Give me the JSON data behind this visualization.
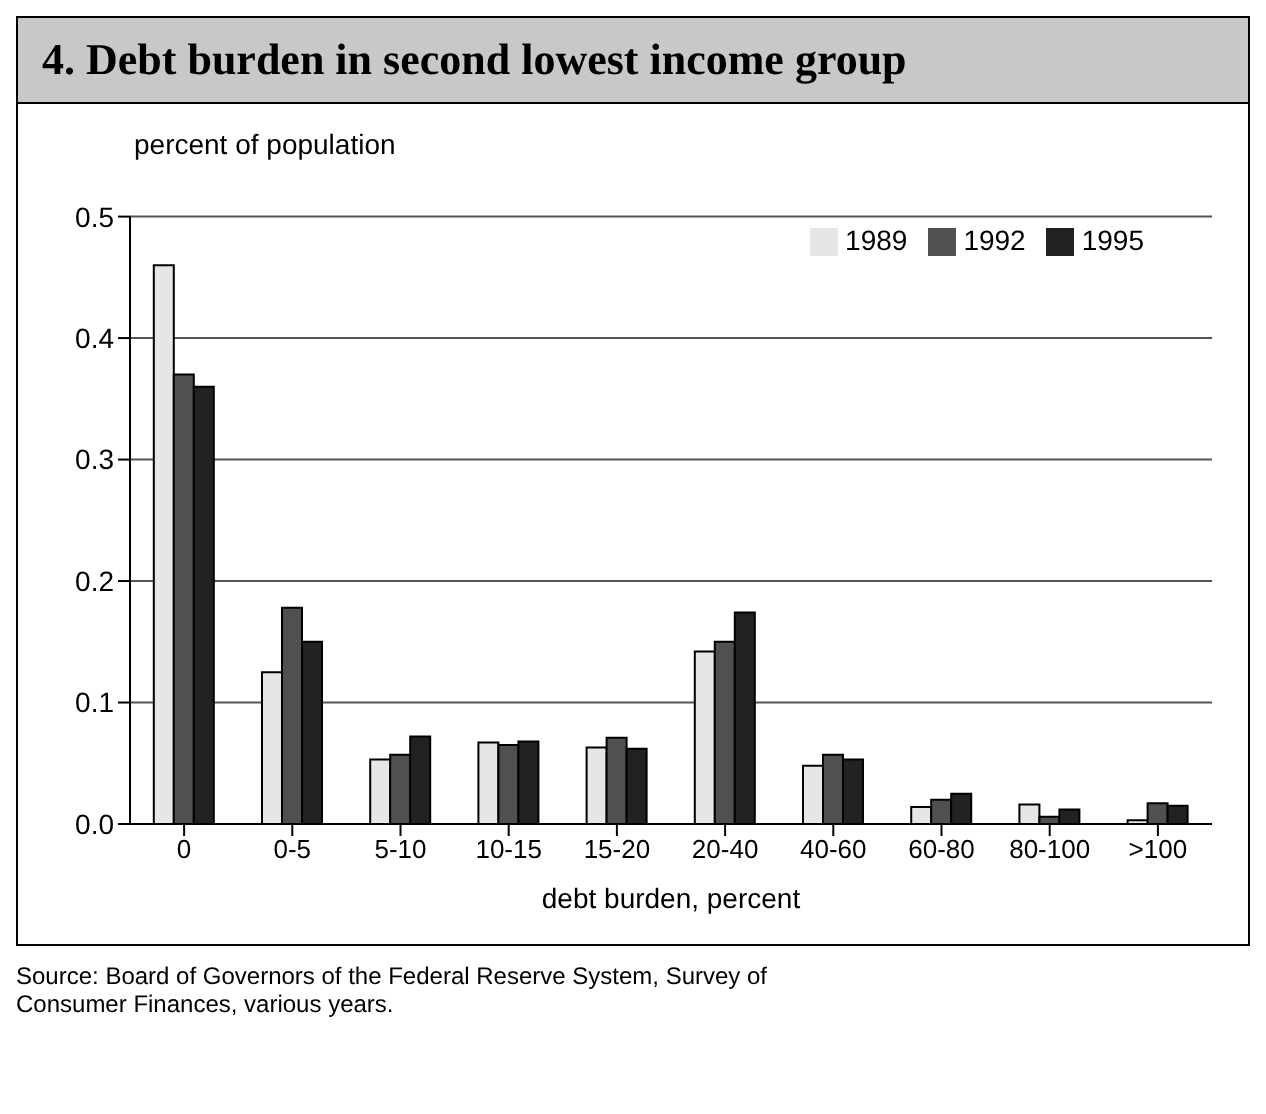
{
  "chart_data": {
    "type": "bar",
    "title": "4. Debt burden in second lowest income group",
    "ylabel": "percent of population",
    "xlabel": "debt burden, percent",
    "categories": [
      "0",
      "0-5",
      "5-10",
      "10-15",
      "15-20",
      "20-40",
      "40-60",
      "60-80",
      "80-100",
      ">100"
    ],
    "series": [
      {
        "name": "1989",
        "color": "#e6e6e6",
        "values": [
          0.46,
          0.125,
          0.053,
          0.067,
          0.063,
          0.142,
          0.048,
          0.014,
          0.016,
          0.003
        ]
      },
      {
        "name": "1992",
        "color": "#505050",
        "values": [
          0.37,
          0.178,
          0.057,
          0.065,
          0.071,
          0.15,
          0.057,
          0.02,
          0.006,
          0.017
        ]
      },
      {
        "name": "1995",
        "color": "#222222",
        "values": [
          0.36,
          0.15,
          0.072,
          0.068,
          0.062,
          0.174,
          0.053,
          0.025,
          0.012,
          0.015
        ]
      }
    ],
    "ylim": [
      0,
      0.5
    ],
    "yticks": [
      {
        "value": 0,
        "label": "0.0"
      },
      0.1,
      0.2,
      0.3,
      0.4,
      0.5
    ],
    "grid": "y",
    "legend": "top right",
    "annotations": [
      "Source: Board of Governors of the Federal Reserve System, Survey of Consumer Finances, various years."
    ]
  }
}
